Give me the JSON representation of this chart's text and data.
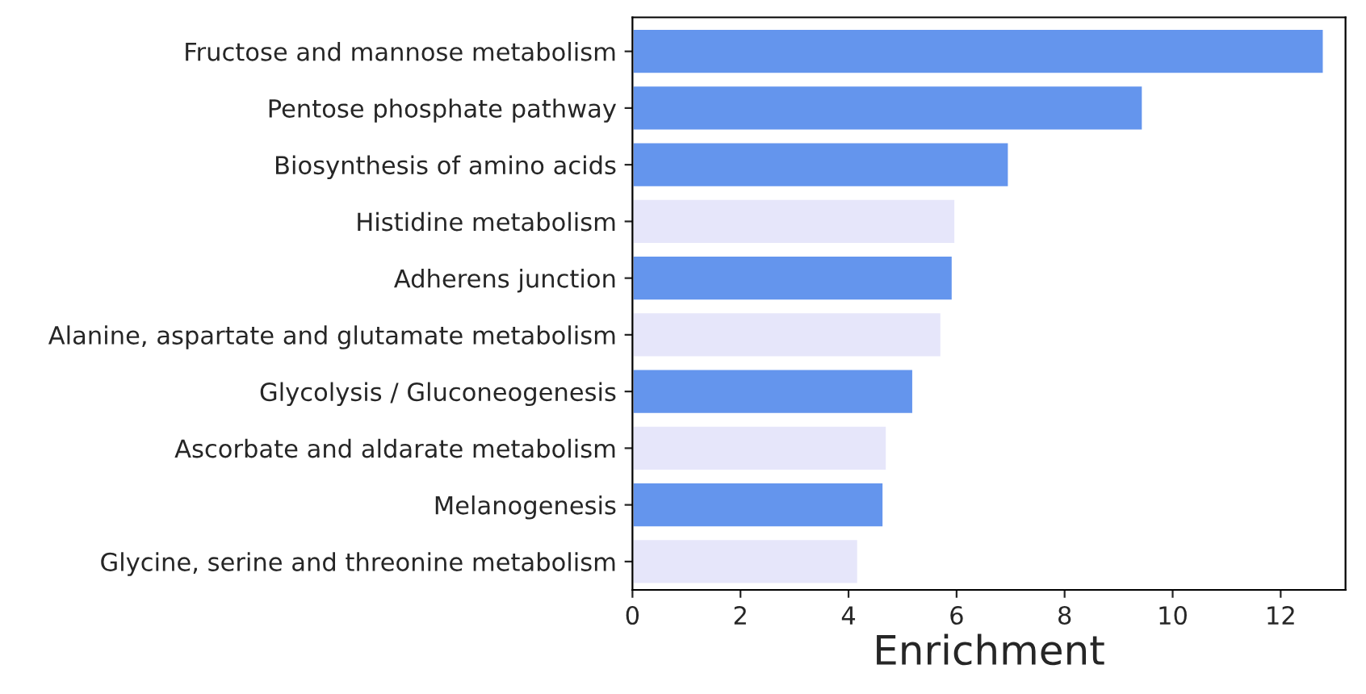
{
  "chart_data": {
    "type": "bar",
    "orientation": "horizontal",
    "xlabel": "Enrichment",
    "categories": [
      "Fructose and mannose metabolism",
      "Pentose phosphate pathway",
      "Biosynthesis of amino acids",
      "Histidine metabolism",
      "Adherens junction",
      "Alanine, aspartate and glutamate metabolism",
      "Glycolysis / Gluconeogenesis",
      "Ascorbate and aldarate metabolism",
      "Melanogenesis",
      "Glycine, serine and threonine metabolism"
    ],
    "values": [
      12.8,
      9.45,
      6.97,
      5.98,
      5.93,
      5.72,
      5.2,
      4.71,
      4.65,
      4.18
    ],
    "colors": [
      "#6495ed",
      "#6495ed",
      "#6495ed",
      "#e6e6fa",
      "#6495ed",
      "#e6e6fa",
      "#6495ed",
      "#e6e6fa",
      "#6495ed",
      "#e6e6fa"
    ],
    "xlim": [
      0,
      13.2
    ],
    "xticks": [
      0,
      2,
      4,
      6,
      8,
      10,
      12
    ],
    "grid": false,
    "legend": false
  }
}
